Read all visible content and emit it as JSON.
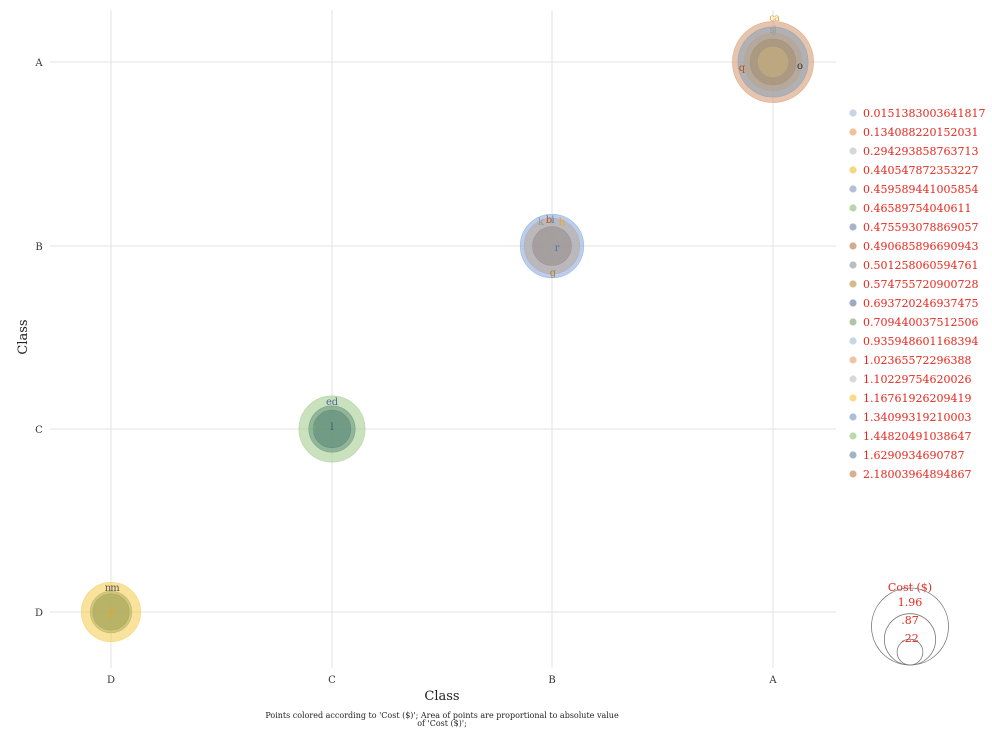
{
  "chart_data": {
    "type": "scatter",
    "title": "",
    "xlabel": "Class",
    "ylabel": "Class",
    "x_categories": [
      "D",
      "C",
      "B",
      "A"
    ],
    "y_categories": [
      "D",
      "C",
      "B",
      "A"
    ],
    "grid": true,
    "legend_position": "right",
    "color_legend": {
      "entries": [
        {
          "label": "0.0151383003641817",
          "color": "#c6d4e6"
        },
        {
          "label": "0.134088220152031",
          "color": "#f2c09a"
        },
        {
          "label": "0.294293858763713",
          "color": "#d6d6dc"
        },
        {
          "label": "0.440547872353227",
          "color": "#f7d77e"
        },
        {
          "label": "0.459589441005854",
          "color": "#b5bfd9"
        },
        {
          "label": "0.46589754040611",
          "color": "#bcd5a8"
        },
        {
          "label": "0.475593078869057",
          "color": "#a9b3c8"
        },
        {
          "label": "0.490685896690943",
          "color": "#d4ab8e"
        },
        {
          "label": "0.501258060594761",
          "color": "#b9bec6"
        },
        {
          "label": "0.574755720900728",
          "color": "#d4bb8e"
        },
        {
          "label": "0.693720246937475",
          "color": "#9ea9c4"
        },
        {
          "label": "0.709440037512506",
          "color": "#b3c3a9"
        },
        {
          "label": "0.935948601168394",
          "color": "#c5d6e6"
        },
        {
          "label": "1.02365572296388",
          "color": "#f2c3a2"
        },
        {
          "label": "1.10229754620026",
          "color": "#d9d9d9"
        },
        {
          "label": "1.16761926209419",
          "color": "#f7db8a"
        },
        {
          "label": "1.34099319210003",
          "color": "#a9bfdc"
        },
        {
          "label": "1.44820491038647",
          "color": "#bcd9ac"
        },
        {
          "label": "1.6290934690787",
          "color": "#9fb5c6"
        },
        {
          "label": "2.18003964894867",
          "color": "#d9b091"
        }
      ]
    },
    "size_legend": {
      "title": "Cost ($)",
      "values": [
        1.96,
        0.87,
        0.22
      ],
      "labels": [
        "1.96",
        ".87",
        ".22"
      ]
    },
    "points": [
      {
        "x": "A",
        "y": "A",
        "value": 2.18003964894867,
        "color": "#d9a07a"
      },
      {
        "x": "A",
        "y": "A",
        "value": 1.6290934690787,
        "color": "#8fa3b5"
      },
      {
        "x": "A",
        "y": "A",
        "value": 1.10229754620026,
        "color": "#b8a48f"
      },
      {
        "x": "A",
        "y": "A",
        "value": 0.693720246937475,
        "color": "#a69070"
      },
      {
        "x": "A",
        "y": "A",
        "value": 0.294293858763713,
        "color": "#c6b080"
      },
      {
        "x": "B",
        "y": "B",
        "value": 1.34099319210003,
        "color": "#8fb0e0"
      },
      {
        "x": "B",
        "y": "B",
        "value": 1.02365572296388,
        "color": "#b9a9a0"
      },
      {
        "x": "B",
        "y": "B",
        "value": 0.501258060594761,
        "color": "#9a8f8c"
      },
      {
        "x": "C",
        "y": "C",
        "value": 1.44820491038647,
        "color": "#a8cf94"
      },
      {
        "x": "C",
        "y": "C",
        "value": 0.709440037512506,
        "color": "#6f9a83"
      },
      {
        "x": "C",
        "y": "C",
        "value": 0.46589754040611,
        "color": "#5d8a78"
      },
      {
        "x": "D",
        "y": "D",
        "value": 1.16761926209419,
        "color": "#f5d060"
      },
      {
        "x": "D",
        "y": "D",
        "value": 0.574755720900728,
        "color": "#b9b46a"
      },
      {
        "x": "D",
        "y": "D",
        "value": 0.440547872353227,
        "color": "#a8a858"
      }
    ],
    "point_labels": [
      {
        "text": "c",
        "x": "A",
        "y": "A",
        "color": "#e8a53a"
      },
      {
        "text": "a",
        "x": "A",
        "y": "A",
        "color": "#e8a53a"
      },
      {
        "text": "s",
        "x": "A",
        "y": "A",
        "color": "#9a9a9a"
      },
      {
        "text": "j",
        "x": "A",
        "y": "A",
        "color": "#9a9a9a"
      },
      {
        "text": "q",
        "x": "A",
        "y": "A",
        "color": "#b5541a"
      },
      {
        "text": "o",
        "x": "A",
        "y": "A",
        "color": "#333333"
      },
      {
        "text": "k",
        "x": "B",
        "y": "B",
        "color": "#999999"
      },
      {
        "text": "b",
        "x": "B",
        "y": "B",
        "color": "#b5541a"
      },
      {
        "text": "i",
        "x": "B",
        "y": "B",
        "color": "#4a78b0"
      },
      {
        "text": "h",
        "x": "B",
        "y": "B",
        "color": "#e8a53a"
      },
      {
        "text": "r",
        "x": "B",
        "y": "B",
        "color": "#4a78b0"
      },
      {
        "text": "g",
        "x": "B",
        "y": "B",
        "color": "#b08030"
      },
      {
        "text": "e",
        "x": "C",
        "y": "C",
        "color": "#4a6a9a"
      },
      {
        "text": "d",
        "x": "C",
        "y": "C",
        "color": "#4a6a9a"
      },
      {
        "text": "f",
        "x": "C",
        "y": "C",
        "color": "#7ab070"
      },
      {
        "text": "l",
        "x": "C",
        "y": "C",
        "color": "#3a5a70"
      },
      {
        "text": "n",
        "x": "D",
        "y": "D",
        "color": "#555555"
      },
      {
        "text": "m",
        "x": "D",
        "y": "D",
        "color": "#555555"
      },
      {
        "text": "p",
        "x": "D",
        "y": "D",
        "color": "#e8a53a"
      }
    ],
    "caption": "Points colored according to 'Cost ($)'; Area of points are proportional to absolute value of 'Cost ($)';"
  }
}
